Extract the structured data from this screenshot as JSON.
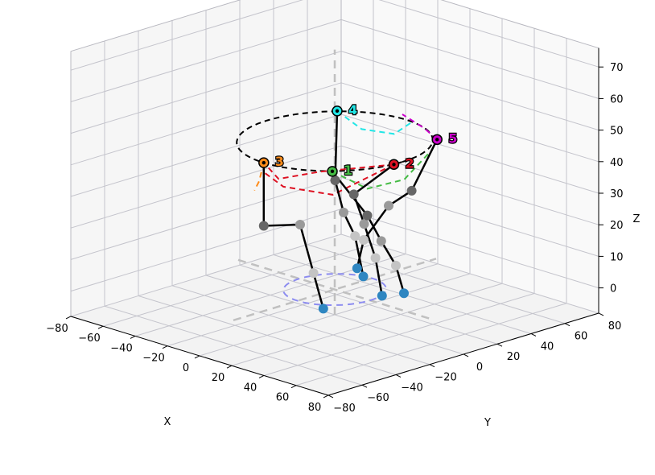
{
  "chart_data": {
    "type": "scatter",
    "projection": "3d",
    "grid": true,
    "xlabel": "X",
    "ylabel": "Y",
    "zlabel": "Z",
    "xlim": [
      -80,
      80
    ],
    "ylim": [
      -80,
      80
    ],
    "zlim": [
      -8,
      76
    ],
    "xticks": [
      -80,
      -60,
      -40,
      -20,
      0,
      20,
      40,
      60,
      80
    ],
    "yticks": [
      -80,
      -60,
      -40,
      -20,
      0,
      20,
      40,
      60,
      80
    ],
    "zticks": [
      0,
      10,
      20,
      30,
      40,
      50,
      60,
      70
    ],
    "ring_radius": 42,
    "top_ring_z": 47,
    "base_ring": {
      "radius": 22,
      "z": 0,
      "color": "#8c8cf0"
    },
    "markers": [
      {
        "label": "1",
        "color": "#44bb44",
        "x": 30,
        "y": -30,
        "z": 47
      },
      {
        "label": "2",
        "color": "#dd1122",
        "x": 42,
        "y": -5,
        "z": 47
      },
      {
        "label": "3",
        "color": "#ff8c1a",
        "x": 0,
        "y": -42,
        "z": 47
      },
      {
        "label": "4",
        "color": "#22e6e6",
        "x": -30,
        "y": 30,
        "z": 47
      },
      {
        "label": "5",
        "color": "#cc00cc",
        "x": 30,
        "y": 32,
        "z": 47
      }
    ],
    "legs": [
      {
        "points": [
          {
            "x": 0,
            "y": -42,
            "z": 47
          },
          {
            "x": 0,
            "y": -42,
            "z": 27
          },
          {
            "x": 10,
            "y": -30,
            "z": 27
          },
          {
            "x": 12,
            "y": -24,
            "z": 11
          },
          {
            "x": 16,
            "y": -22,
            "z": 0
          }
        ]
      },
      {
        "points": [
          {
            "x": 42,
            "y": -5,
            "z": 47
          },
          {
            "x": 15,
            "y": -3,
            "z": 33
          },
          {
            "x": 13,
            "y": 5,
            "z": 22
          },
          {
            "x": 19,
            "y": 6,
            "z": 12
          },
          {
            "x": 21,
            "y": 8,
            "z": 0
          }
        ]
      },
      {
        "points": [
          {
            "x": -30,
            "y": 30,
            "z": 47
          },
          {
            "x": -5,
            "y": 5,
            "z": 33
          },
          {
            "x": -5,
            "y": 10,
            "z": 22
          },
          {
            "x": 0,
            "y": 12,
            "z": 15
          },
          {
            "x": 2,
            "y": 15,
            "z": 2
          }
        ]
      },
      {
        "points": [
          {
            "x": 30,
            "y": -30,
            "z": 47
          },
          {
            "x": 15,
            "y": 5,
            "z": 25
          },
          {
            "x": 10,
            "y": 18,
            "z": 14
          },
          {
            "x": 17,
            "y": 20,
            "z": 7
          },
          {
            "x": 22,
            "y": 20,
            "z": -1
          }
        ]
      },
      {
        "points": [
          {
            "x": 30,
            "y": 32,
            "z": 47
          },
          {
            "x": 10,
            "y": 36,
            "z": 27
          },
          {
            "x": 2,
            "y": 30,
            "z": 22
          },
          {
            "x": -3,
            "y": 20,
            "z": 12
          },
          {
            "x": -5,
            "y": 18,
            "z": 3
          }
        ]
      }
    ],
    "dashed_arcs": [
      {
        "color": "#dd1122",
        "points": [
          {
            "x": 42,
            "y": -5,
            "z": 47
          },
          {
            "x": 20,
            "y": -28,
            "z": 45
          },
          {
            "x": 5,
            "y": -38,
            "z": 42
          },
          {
            "x": 0,
            "y": -42,
            "z": 47
          }
        ]
      },
      {
        "color": "#dd1122",
        "points": [
          {
            "x": 42,
            "y": -5,
            "z": 47
          },
          {
            "x": 25,
            "y": -25,
            "z": 38
          },
          {
            "x": 8,
            "y": -38,
            "z": 40
          },
          {
            "x": 0,
            "y": -42,
            "z": 44
          }
        ]
      },
      {
        "color": "#22e6e6",
        "points": [
          {
            "x": -30,
            "y": 30,
            "z": 47
          },
          {
            "x": -20,
            "y": 35,
            "z": 42
          },
          {
            "x": -5,
            "y": 40,
            "z": 42
          },
          {
            "x": 5,
            "y": 40,
            "z": 47
          }
        ]
      },
      {
        "color": "#cc00cc",
        "points": [
          {
            "x": 30,
            "y": 32,
            "z": 47
          },
          {
            "x": 18,
            "y": 36,
            "z": 48
          },
          {
            "x": 0,
            "y": 40,
            "z": 49
          }
        ]
      },
      {
        "color": "#44bb44",
        "points": [
          {
            "x": 30,
            "y": -30,
            "z": 47
          },
          {
            "x": 36,
            "y": -15,
            "z": 40
          },
          {
            "x": 38,
            "y": 5,
            "z": 40
          },
          {
            "x": 32,
            "y": 25,
            "z": 44
          }
        ]
      },
      {
        "color": "#ff8c1a",
        "points": [
          {
            "x": 0,
            "y": -42,
            "z": 47
          },
          {
            "x": -5,
            "y": -40,
            "z": 40
          },
          {
            "x": -10,
            "y": -38,
            "z": 36
          }
        ]
      }
    ]
  }
}
